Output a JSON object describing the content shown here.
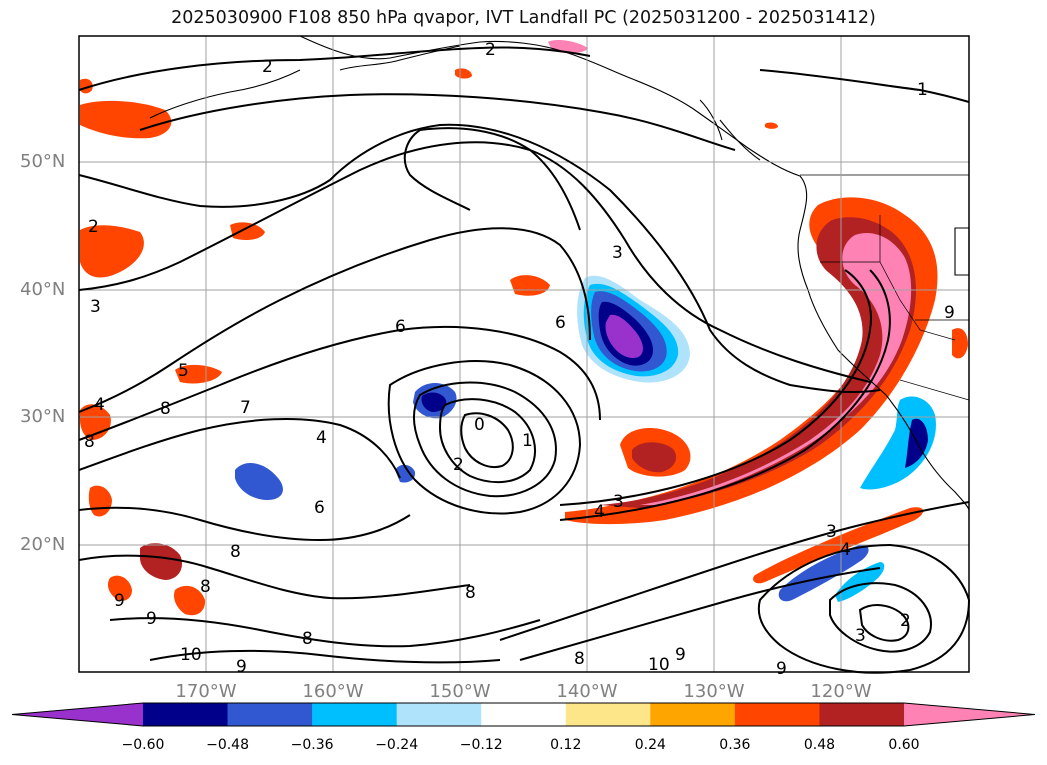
{
  "title": "2025030900 F108 850 hPa qvapor, IVT Landfall PC (2025031200 - 2025031412)",
  "lat_ticks": [
    "50°N",
    "40°N",
    "30°N",
    "20°N"
  ],
  "lon_ticks": [
    "170°W",
    "160°W",
    "150°W",
    "140°W",
    "130°W",
    "120°W"
  ],
  "colorbar": {
    "tick_labels": [
      "−0.60",
      "−0.48",
      "−0.36",
      "−0.24",
      "−0.12",
      "0.12",
      "0.24",
      "0.36",
      "0.48",
      "0.60"
    ],
    "colors": [
      "#9932cc",
      "#00008b",
      "#3158d0",
      "#00bfff",
      "#aee3fb",
      "#ffffff",
      "#fde68a",
      "#ffa500",
      "#ff4500",
      "#b22222",
      "#ff82b4"
    ]
  },
  "contour_labels": [
    "2",
    "2",
    "1",
    "3",
    "6",
    "5",
    "4",
    "7",
    "8",
    "8",
    "8",
    "4",
    "0",
    "1",
    "2",
    "6",
    "3",
    "4",
    "3",
    "4",
    "3",
    "2",
    "8",
    "8",
    "9",
    "9",
    "10",
    "9",
    "8",
    "10",
    "9",
    "9",
    "8",
    "2",
    "3",
    "6",
    "9"
  ]
}
